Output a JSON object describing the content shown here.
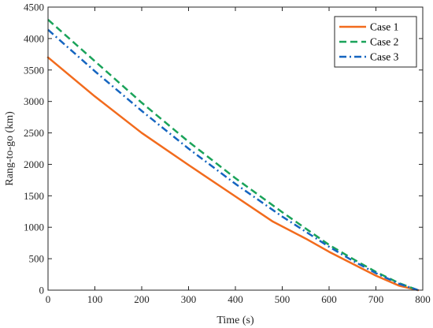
{
  "chart_data": {
    "type": "line",
    "title": "",
    "xlabel": "Time (s)",
    "ylabel": "Rang-to-go (km)",
    "xlim": [
      0,
      800
    ],
    "ylim": [
      0,
      4500
    ],
    "xticks": [
      0,
      100,
      200,
      300,
      400,
      500,
      600,
      700,
      800
    ],
    "yticks": [
      0,
      500,
      1000,
      1500,
      2000,
      2500,
      3000,
      3500,
      4000,
      4500
    ],
    "grid": false,
    "legend_position": "top-right",
    "series": [
      {
        "name": "Case 1",
        "color": "#f26b1d",
        "style": "solid",
        "x": [
          0,
          100,
          200,
          300,
          400,
          480,
          550,
          600,
          650,
          700,
          750,
          790
        ],
        "y": [
          3700,
          3080,
          2500,
          1990,
          1490,
          1090,
          820,
          610,
          420,
          230,
          70,
          0
        ]
      },
      {
        "name": "Case 2",
        "color": "#1aa35a",
        "style": "dashed",
        "x": [
          0,
          100,
          200,
          300,
          400,
          500,
          600,
          650,
          700,
          750,
          790
        ],
        "y": [
          4300,
          3640,
          2980,
          2360,
          1780,
          1240,
          720,
          500,
          290,
          110,
          0
        ]
      },
      {
        "name": "Case 3",
        "color": "#1565c0",
        "style": "dashdot",
        "x": [
          0,
          100,
          200,
          300,
          400,
          500,
          600,
          650,
          700,
          750,
          790
        ],
        "y": [
          4140,
          3480,
          2850,
          2250,
          1690,
          1170,
          690,
          470,
          270,
          100,
          0
        ]
      }
    ]
  }
}
